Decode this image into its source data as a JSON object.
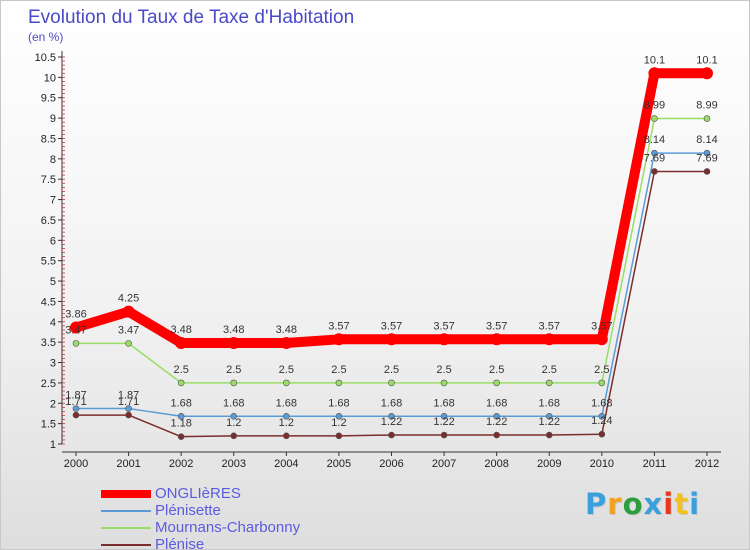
{
  "chart_data": {
    "type": "line",
    "title": "Evolution du Taux de Taxe d'Habitation",
    "subtitle": "(en %)",
    "categories": [
      "2000",
      "2001",
      "2002",
      "2003",
      "2004",
      "2005",
      "2006",
      "2007",
      "2008",
      "2009",
      "2010",
      "2011",
      "2012"
    ],
    "ylim": [
      1,
      10.5
    ],
    "yticks": [
      "1",
      "1.5",
      "2",
      "2.5",
      "3",
      "3.5",
      "4",
      "4.5",
      "5",
      "5.5",
      "6",
      "6.5",
      "7",
      "7.5",
      "8",
      "8.5",
      "9",
      "9.5",
      "10",
      "10.5"
    ],
    "series": [
      {
        "name": "ONGLIèRES",
        "color": "#ff0000",
        "values": [
          3.86,
          4.25,
          3.48,
          3.48,
          3.48,
          3.57,
          3.57,
          3.57,
          3.57,
          3.57,
          3.57,
          10.1,
          10.1
        ],
        "labels": [
          "3.86",
          "4.25",
          "3.48",
          "3.48",
          "3.48",
          "3.57",
          "3.57",
          "3.57",
          "3.57",
          "3.57",
          "3.57",
          "10.1",
          "10.1"
        ]
      },
      {
        "name": "Plénisette",
        "color": "#5b9bd5",
        "values": [
          1.87,
          1.87,
          1.68,
          1.68,
          1.68,
          1.68,
          1.68,
          1.68,
          1.68,
          1.68,
          1.68,
          8.14,
          8.14
        ],
        "labels": [
          "1.87",
          "1.87",
          "1.68",
          "1.68",
          "1.68",
          "1.68",
          "1.68",
          "1.68",
          "1.68",
          "1.68",
          "1.68",
          "8.14",
          "8.14"
        ]
      },
      {
        "name": "Mournans-Charbonny",
        "color": "#99dd66",
        "values": [
          3.47,
          3.47,
          2.5,
          2.5,
          2.5,
          2.5,
          2.5,
          2.5,
          2.5,
          2.5,
          2.5,
          8.99,
          8.99
        ],
        "labels": [
          "3.47",
          "3.47",
          "2.5",
          "2.5",
          "2.5",
          "2.5",
          "2.5",
          "2.5",
          "2.5",
          "2.5",
          "2.5",
          "8.99",
          "8.99"
        ]
      },
      {
        "name": "Plénise",
        "color": "#7b2c2c",
        "values": [
          1.71,
          1.71,
          1.18,
          1.2,
          1.2,
          1.2,
          1.22,
          1.22,
          1.22,
          1.22,
          1.24,
          7.69,
          7.69
        ],
        "labels": [
          "1.71",
          "1.71",
          "1.18",
          "1.2",
          "1.2",
          "1.2",
          "1.22",
          "1.22",
          "1.22",
          "1.22",
          "1.24",
          "7.69",
          "7.69"
        ]
      }
    ]
  },
  "brand": {
    "letters": [
      "P",
      "r",
      "o",
      "x",
      "i",
      "t",
      "i"
    ],
    "colors": [
      "#3aa0dc",
      "#f3a021",
      "#2d9e3c",
      "#3aa0dc",
      "#e8381d",
      "#f3c221",
      "#3aa0dc"
    ]
  }
}
